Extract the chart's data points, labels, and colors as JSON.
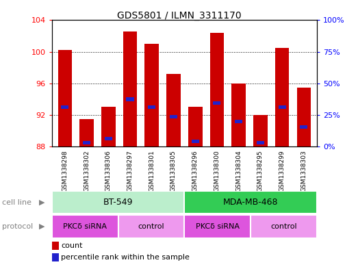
{
  "title": "GDS5801 / ILMN_3311170",
  "samples": [
    "GSM1338298",
    "GSM1338302",
    "GSM1338306",
    "GSM1338297",
    "GSM1338301",
    "GSM1338305",
    "GSM1338296",
    "GSM1338300",
    "GSM1338304",
    "GSM1338295",
    "GSM1338299",
    "GSM1338303"
  ],
  "bar_tops": [
    100.2,
    91.5,
    93.0,
    102.6,
    101.0,
    97.2,
    93.0,
    102.4,
    96.0,
    92.0,
    100.5,
    95.5
  ],
  "blue_dots": [
    93.0,
    88.5,
    89.0,
    94.0,
    93.0,
    91.8,
    88.7,
    93.5,
    91.2,
    88.5,
    93.0,
    90.5
  ],
  "bar_base": 88.0,
  "ylim": [
    88,
    104
  ],
  "yticks_left": [
    88,
    92,
    96,
    100,
    104
  ],
  "bar_color": "#cc0000",
  "dot_color": "#2222cc",
  "bt549_color": "#bbeecc",
  "mda_color": "#33cc55",
  "pkc_color": "#dd55dd",
  "ctrl_color": "#ee99ee",
  "gray_bg": "#cccccc",
  "cell_line_row_label": "cell line",
  "protocol_row_label": "protocol",
  "legend_count": "count",
  "legend_pct": "percentile rank within the sample",
  "plot_bg": "#ffffff"
}
